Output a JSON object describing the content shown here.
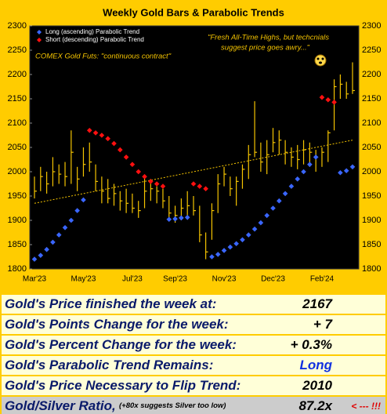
{
  "chart_data": {
    "type": "ohlc",
    "title": "Weekly Gold Bars & Parabolic Trends",
    "categories": [
      "Mar'23",
      null,
      null,
      null,
      null,
      null,
      null,
      null,
      "May'23",
      null,
      null,
      null,
      null,
      null,
      null,
      null,
      "Jul'23",
      null,
      null,
      null,
      null,
      null,
      null,
      "Sep'23",
      null,
      null,
      null,
      null,
      null,
      null,
      null,
      "Nov'23",
      null,
      null,
      null,
      null,
      null,
      null,
      null,
      "Dec'23",
      null,
      null,
      null,
      null,
      null,
      null,
      null,
      "Feb'24",
      null,
      null,
      null,
      null,
      null
    ],
    "bars": {
      "color": "#f5c400",
      "high": [
        1990,
        2010,
        2000,
        2030,
        2015,
        2020,
        2085,
        2010,
        2050,
        2060,
        2015,
        1990,
        1985,
        1975,
        1960,
        1965,
        1955,
        1940,
        1990,
        1985,
        1970,
        1965,
        1950,
        1930,
        1945,
        1960,
        1950,
        1930,
        1875,
        1935,
        1995,
        2010,
        1990,
        1990,
        2015,
        2055,
        2145,
        2060,
        2065,
        2090,
        2085,
        2065,
        2050,
        2055,
        2065,
        2060,
        2045,
        2050,
        2085,
        2190,
        2200,
        2185,
        2225
      ],
      "low": [
        1945,
        1960,
        1955,
        1970,
        1975,
        1970,
        1975,
        1960,
        1990,
        2000,
        1960,
        1935,
        1935,
        1930,
        1920,
        1915,
        1915,
        1905,
        1925,
        1940,
        1935,
        1925,
        1900,
        1895,
        1900,
        1910,
        1910,
        1855,
        1820,
        1860,
        1915,
        1970,
        1950,
        1930,
        1965,
        1985,
        2030,
        2000,
        1995,
        2040,
        2035,
        2015,
        2010,
        2005,
        2015,
        2010,
        2000,
        2010,
        2020,
        2085,
        2150,
        2150,
        2160
      ],
      "close": [
        1960,
        1990,
        1975,
        2000,
        1995,
        1990,
        2040,
        1985,
        2015,
        2020,
        1980,
        1960,
        1945,
        1955,
        1940,
        1935,
        1925,
        1920,
        1960,
        1965,
        1960,
        1940,
        1915,
        1910,
        1925,
        1930,
        1920,
        1870,
        1835,
        1920,
        1975,
        1995,
        1965,
        1980,
        2005,
        2035,
        2040,
        2020,
        2035,
        2060,
        2065,
        2040,
        2030,
        2025,
        2045,
        2040,
        2030,
        2040,
        2080,
        2175,
        2180,
        2160,
        2167
      ]
    },
    "series": [
      {
        "name": "Long (ascending) Parabolic Trend",
        "color": "#3a66ff",
        "values": [
          1820,
          1828,
          1840,
          1855,
          1870,
          1885,
          1900,
          1920,
          1942,
          null,
          null,
          null,
          null,
          null,
          null,
          null,
          null,
          null,
          null,
          null,
          null,
          null,
          1902,
          1903,
          1905,
          1906,
          null,
          null,
          null,
          1825,
          1830,
          1838,
          1845,
          1852,
          1860,
          1870,
          1882,
          1895,
          1910,
          1925,
          1940,
          1955,
          1970,
          1985,
          2000,
          2015,
          2030,
          null,
          null,
          null,
          1998,
          2002,
          2010
        ]
      },
      {
        "name": "Short (descending) Parabolic Trend",
        "color": "#ff1010",
        "values": [
          null,
          null,
          null,
          null,
          null,
          null,
          null,
          null,
          null,
          2085,
          2080,
          2075,
          2068,
          2058,
          2045,
          2030,
          2015,
          2000,
          1990,
          1980,
          1975,
          1970,
          null,
          null,
          null,
          null,
          1975,
          1970,
          1965,
          null,
          null,
          null,
          null,
          null,
          null,
          null,
          null,
          null,
          null,
          null,
          null,
          null,
          null,
          null,
          null,
          null,
          null,
          2153,
          2148,
          2143,
          null,
          null,
          null
        ]
      }
    ],
    "trend": {
      "color": "#f5c400",
      "start": 1935,
      "end": 2065
    },
    "annotations": [
      "\"Fresh All-Time Highs, but techcnials",
      "suggest price goes awry...\"",
      "COMEX Gold Futs: \"continuous contract\""
    ],
    "ylim": [
      1800,
      2300
    ],
    "yticks": [
      1800,
      1850,
      1900,
      1950,
      2000,
      2050,
      2100,
      2150,
      2200,
      2250,
      2300
    ]
  },
  "table": {
    "rows": [
      {
        "label": "Gold's Price finished the week at:",
        "value": "2167"
      },
      {
        "label": "Gold's Points Change for the week:",
        "value": "+ 7"
      },
      {
        "label": "Gold's Percent Change for the week:",
        "value": "+ 0.3%"
      },
      {
        "label": "Gold's Parabolic Trend Remains:",
        "value": "Long"
      },
      {
        "label": "Gold's Price Necessary to Flip Trend:",
        "value": "2010"
      }
    ],
    "last_row": {
      "label": "Gold/Silver Ratio,",
      "note": "(+80x suggests Silver too low)",
      "value": "87.2x",
      "flag": "< --- !!!"
    }
  }
}
